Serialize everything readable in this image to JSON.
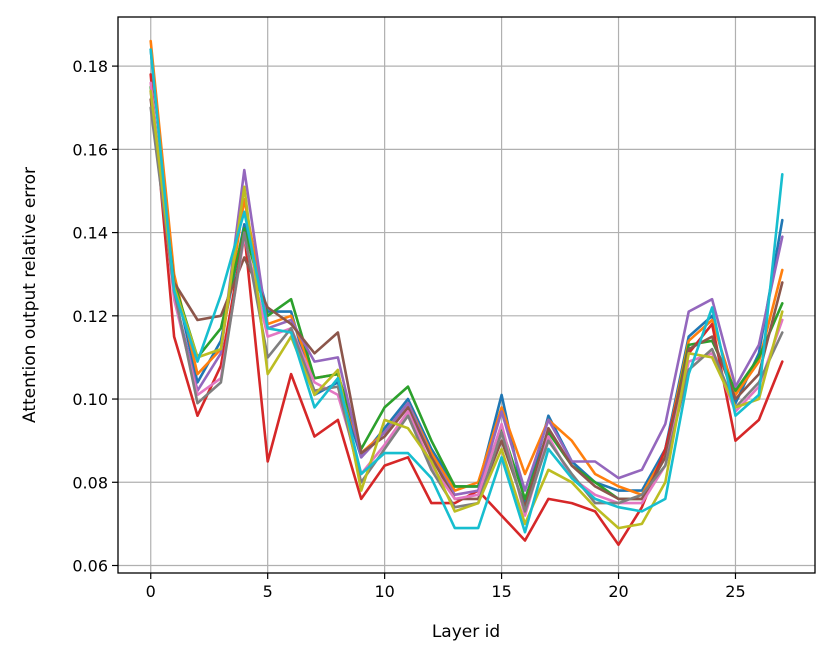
{
  "chart_data": {
    "type": "line",
    "title": "",
    "xlabel": "Layer id",
    "ylabel": "Attention output relative error",
    "xlim": [
      -1.4,
      28.4
    ],
    "ylim": [
      0.0582,
      0.1918
    ],
    "xticks": [
      0,
      5,
      10,
      15,
      20,
      25
    ],
    "xtick_labels": [
      "0",
      "5",
      "10",
      "15",
      "20",
      "25"
    ],
    "yticks": [
      0.06,
      0.08,
      0.1,
      0.12,
      0.14,
      0.16,
      0.18
    ],
    "ytick_labels": [
      "0.06",
      "0.08",
      "0.10",
      "0.12",
      "0.14",
      "0.16",
      "0.18"
    ],
    "grid": true,
    "x": [
      0,
      1,
      2,
      3,
      4,
      5,
      6,
      7,
      8,
      9,
      10,
      11,
      12,
      13,
      14,
      15,
      16,
      17,
      18,
      19,
      20,
      21,
      22,
      23,
      24,
      25,
      26,
      27
    ],
    "series": [
      {
        "color": "#1f77b4",
        "values": [
          0.184,
          0.129,
          0.104,
          0.114,
          0.142,
          0.121,
          0.121,
          0.101,
          0.104,
          0.086,
          0.093,
          0.1,
          0.088,
          0.079,
          0.079,
          0.101,
          0.075,
          0.096,
          0.085,
          0.08,
          0.078,
          0.078,
          0.088,
          0.115,
          0.12,
          0.099,
          0.111,
          0.143
        ]
      },
      {
        "color": "#ff7f0e",
        "values": [
          0.186,
          0.13,
          0.106,
          0.112,
          0.148,
          0.118,
          0.12,
          0.105,
          0.106,
          0.087,
          0.092,
          0.099,
          0.087,
          0.078,
          0.08,
          0.098,
          0.082,
          0.095,
          0.09,
          0.082,
          0.079,
          0.077,
          0.087,
          0.114,
          0.119,
          0.101,
          0.109,
          0.131
        ]
      },
      {
        "color": "#2ca02c",
        "values": [
          0.175,
          0.128,
          0.11,
          0.117,
          0.141,
          0.12,
          0.124,
          0.105,
          0.106,
          0.088,
          0.098,
          0.103,
          0.09,
          0.079,
          0.079,
          0.093,
          0.076,
          0.092,
          0.084,
          0.08,
          0.076,
          0.076,
          0.086,
          0.113,
          0.114,
          0.102,
          0.11,
          0.123
        ]
      },
      {
        "color": "#d62728",
        "values": [
          0.178,
          0.115,
          0.096,
          0.108,
          0.14,
          0.085,
          0.106,
          0.091,
          0.095,
          0.076,
          0.084,
          0.086,
          0.075,
          0.075,
          0.078,
          0.072,
          0.066,
          0.076,
          0.075,
          0.073,
          0.065,
          0.074,
          0.088,
          0.111,
          0.118,
          0.09,
          0.095,
          0.109
        ]
      },
      {
        "color": "#9467bd",
        "values": [
          0.174,
          0.125,
          0.102,
          0.111,
          0.155,
          0.117,
          0.119,
          0.109,
          0.11,
          0.086,
          0.092,
          0.099,
          0.086,
          0.077,
          0.078,
          0.097,
          0.078,
          0.095,
          0.085,
          0.085,
          0.081,
          0.083,
          0.094,
          0.121,
          0.124,
          0.103,
          0.113,
          0.139
        ]
      },
      {
        "color": "#8c564b",
        "values": [
          0.172,
          0.128,
          0.119,
          0.12,
          0.134,
          0.122,
          0.118,
          0.111,
          0.116,
          0.087,
          0.091,
          0.098,
          0.086,
          0.076,
          0.076,
          0.09,
          0.074,
          0.093,
          0.084,
          0.079,
          0.076,
          0.076,
          0.086,
          0.112,
          0.115,
          0.1,
          0.106,
          0.128
        ]
      },
      {
        "color": "#e377c2",
        "values": [
          0.176,
          0.124,
          0.101,
          0.105,
          0.139,
          0.115,
          0.117,
          0.104,
          0.101,
          0.082,
          0.089,
          0.097,
          0.084,
          0.076,
          0.077,
          0.094,
          0.072,
          0.091,
          0.081,
          0.077,
          0.075,
          0.075,
          0.084,
          0.109,
          0.111,
          0.097,
          0.103,
          0.119
        ]
      },
      {
        "color": "#7f7f7f",
        "values": [
          0.17,
          0.126,
          0.099,
          0.104,
          0.14,
          0.11,
          0.117,
          0.102,
          0.103,
          0.08,
          0.088,
          0.096,
          0.083,
          0.074,
          0.075,
          0.092,
          0.073,
          0.09,
          0.082,
          0.075,
          0.075,
          0.077,
          0.084,
          0.107,
          0.112,
          0.098,
          0.104,
          0.116
        ]
      },
      {
        "color": "#bcbd22",
        "values": [
          0.174,
          0.127,
          0.11,
          0.112,
          0.151,
          0.106,
          0.115,
          0.101,
          0.107,
          0.078,
          0.095,
          0.093,
          0.085,
          0.073,
          0.075,
          0.088,
          0.07,
          0.083,
          0.08,
          0.074,
          0.069,
          0.07,
          0.08,
          0.111,
          0.11,
          0.098,
          0.1,
          0.121
        ]
      },
      {
        "color": "#17becf",
        "values": [
          0.184,
          0.126,
          0.109,
          0.125,
          0.145,
          0.117,
          0.116,
          0.098,
          0.105,
          0.082,
          0.087,
          0.087,
          0.081,
          0.069,
          0.069,
          0.086,
          0.068,
          0.088,
          0.081,
          0.076,
          0.074,
          0.073,
          0.076,
          0.106,
          0.122,
          0.096,
          0.101,
          0.154
        ]
      }
    ]
  }
}
